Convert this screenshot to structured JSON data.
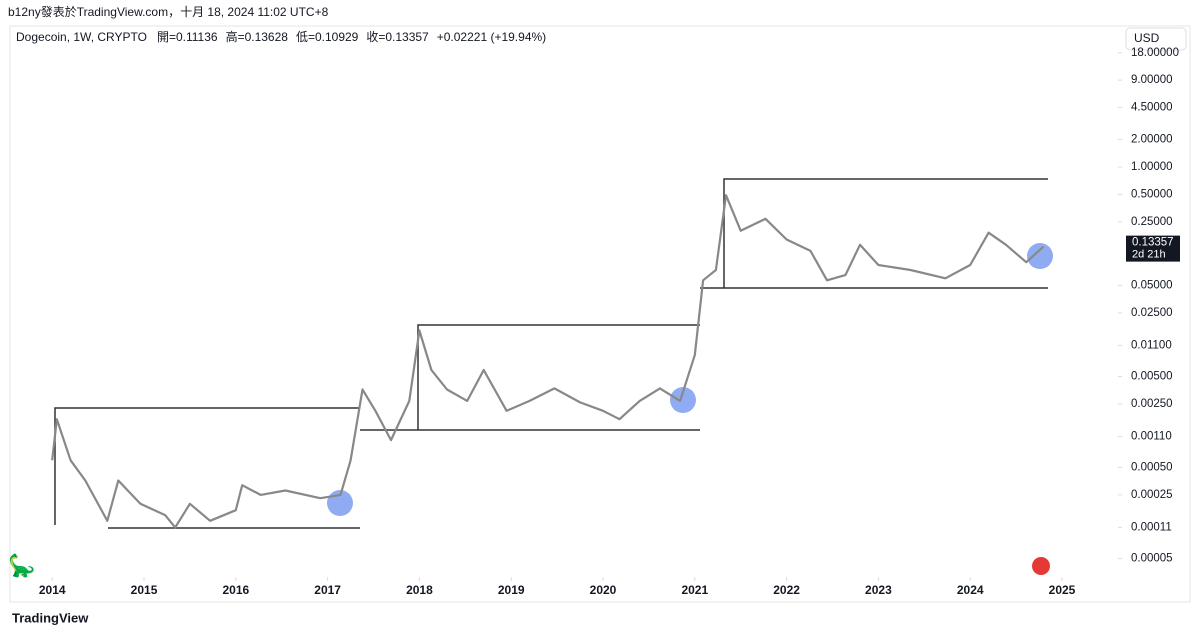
{
  "header": {
    "byline": "b12ny發表於TradingView.com，十月 18, 2024 11:02 UTC+8"
  },
  "chart_data": {
    "type": "line",
    "log_scale": true,
    "color": "#888888",
    "symbol": "Dogecoin, 1W, CRYPTO",
    "ohlc": [
      "開=0.11136",
      "高=0.13628",
      "低=0.10929",
      "收=0.13357",
      "+0.02221 (+19.94%)"
    ],
    "currency": "USD",
    "countdown": "2d 21h",
    "x": [
      2014.0,
      2014.05,
      2014.2,
      2014.36,
      2014.6,
      2014.72,
      2014.96,
      2015.23,
      2015.34,
      2015.5,
      2015.72,
      2016.0,
      2016.07,
      2016.27,
      2016.54,
      2016.92,
      2017.14,
      2017.25,
      2017.38,
      2017.52,
      2017.69,
      2017.89,
      2018.0,
      2018.13,
      2018.3,
      2018.52,
      2018.7,
      2018.95,
      2019.2,
      2019.47,
      2019.75,
      2020.0,
      2020.18,
      2020.4,
      2020.62,
      2020.84,
      2021.0,
      2021.09,
      2021.23,
      2021.34,
      2021.5,
      2021.77,
      2022.0,
      2022.26,
      2022.44,
      2022.64,
      2022.8,
      2023.0,
      2023.35,
      2023.73,
      2024.0,
      2024.2,
      2024.39,
      2024.61,
      2024.8
    ],
    "values": [
      0.0006,
      0.0017,
      0.0006,
      0.00036,
      0.00013,
      0.00036,
      0.0002,
      0.00015,
      0.00011,
      0.0002,
      0.00013,
      0.00017,
      0.00032,
      0.00025,
      0.00028,
      0.00023,
      0.00025,
      0.0006,
      0.0036,
      0.0021,
      0.001,
      0.0027,
      0.016,
      0.0059,
      0.0036,
      0.0027,
      0.0059,
      0.0021,
      0.0027,
      0.0037,
      0.0026,
      0.0021,
      0.0017,
      0.0027,
      0.0037,
      0.0027,
      0.0086,
      0.057,
      0.074,
      0.49,
      0.2,
      0.27,
      0.16,
      0.12,
      0.057,
      0.065,
      0.14,
      0.084,
      0.074,
      0.06,
      0.084,
      0.19,
      0.14,
      0.09,
      0.13357
    ],
    "xlim": [
      2013.54,
      2025.61
    ],
    "xticks": [
      2014,
      2015,
      2016,
      2017,
      2018,
      2019,
      2020,
      2021,
      2022,
      2023,
      2024,
      2025
    ],
    "ylim": [
      3.3e-05,
      32
    ],
    "yticks": [
      {
        "value": 18,
        "label": "18.00000"
      },
      {
        "value": 9,
        "label": "9.00000"
      },
      {
        "value": 4.5,
        "label": "4.50000"
      },
      {
        "value": 2,
        "label": "2.00000"
      },
      {
        "value": 1,
        "label": "1.00000"
      },
      {
        "value": 0.5,
        "label": "0.50000"
      },
      {
        "value": 0.25,
        "label": "0.25000"
      },
      {
        "value": 0.05,
        "label": "0.05000"
      },
      {
        "value": 0.025,
        "label": "0.02500"
      },
      {
        "value": 0.011,
        "label": "0.01100"
      },
      {
        "value": 0.005,
        "label": "0.00500"
      },
      {
        "value": 0.0025,
        "label": "0.00250"
      },
      {
        "value": 0.0011,
        "label": "0.00110"
      },
      {
        "value": 0.0005,
        "label": "0.00050"
      },
      {
        "value": 0.00025,
        "label": "0.00025"
      },
      {
        "value": 0.00011,
        "label": "0.00011"
      },
      {
        "value": 5e-05,
        "label": "0.00005"
      }
    ]
  },
  "footer": {
    "brand": "TradingView"
  }
}
